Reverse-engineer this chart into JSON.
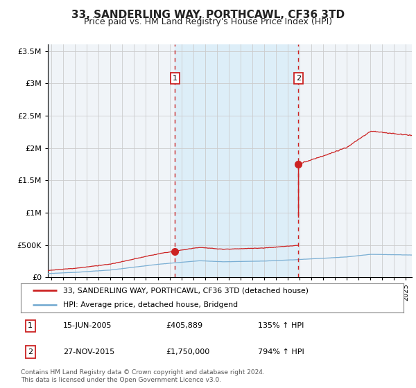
{
  "title": "33, SANDERLING WAY, PORTHCAWL, CF36 3TD",
  "subtitle": "Price paid vs. HM Land Registry's House Price Index (HPI)",
  "title_fontsize": 11,
  "subtitle_fontsize": 9,
  "bg_color": "#ffffff",
  "plot_bg_color": "#f0f4f8",
  "grid_color": "#cccccc",
  "hpi_line_color": "#7bafd4",
  "price_line_color": "#cc2222",
  "marker_color": "#cc2222",
  "annotation_box_color": "#cc2222",
  "dashed_line_color": "#cc2222",
  "span_color": "#ddeef8",
  "purchase1_date": 2005.46,
  "purchase1_price": 405889,
  "purchase2_date": 2015.905,
  "purchase2_price": 1750000,
  "legend_entries": [
    "33, SANDERLING WAY, PORTHCAWL, CF36 3TD (detached house)",
    "HPI: Average price, detached house, Bridgend"
  ],
  "table_rows": [
    [
      "1",
      "15-JUN-2005",
      "£405,889",
      "135% ↑ HPI"
    ],
    [
      "2",
      "27-NOV-2015",
      "£1,750,000",
      "794% ↑ HPI"
    ]
  ],
  "footnote": "Contains HM Land Registry data © Crown copyright and database right 2024.\nThis data is licensed under the Open Government Licence v3.0.",
  "ylim": [
    0,
    3600000
  ],
  "xlim_start": 1994.7,
  "xlim_end": 2025.5,
  "yticks": [
    0,
    500000,
    1000000,
    1500000,
    2000000,
    2500000,
    3000000,
    3500000
  ]
}
